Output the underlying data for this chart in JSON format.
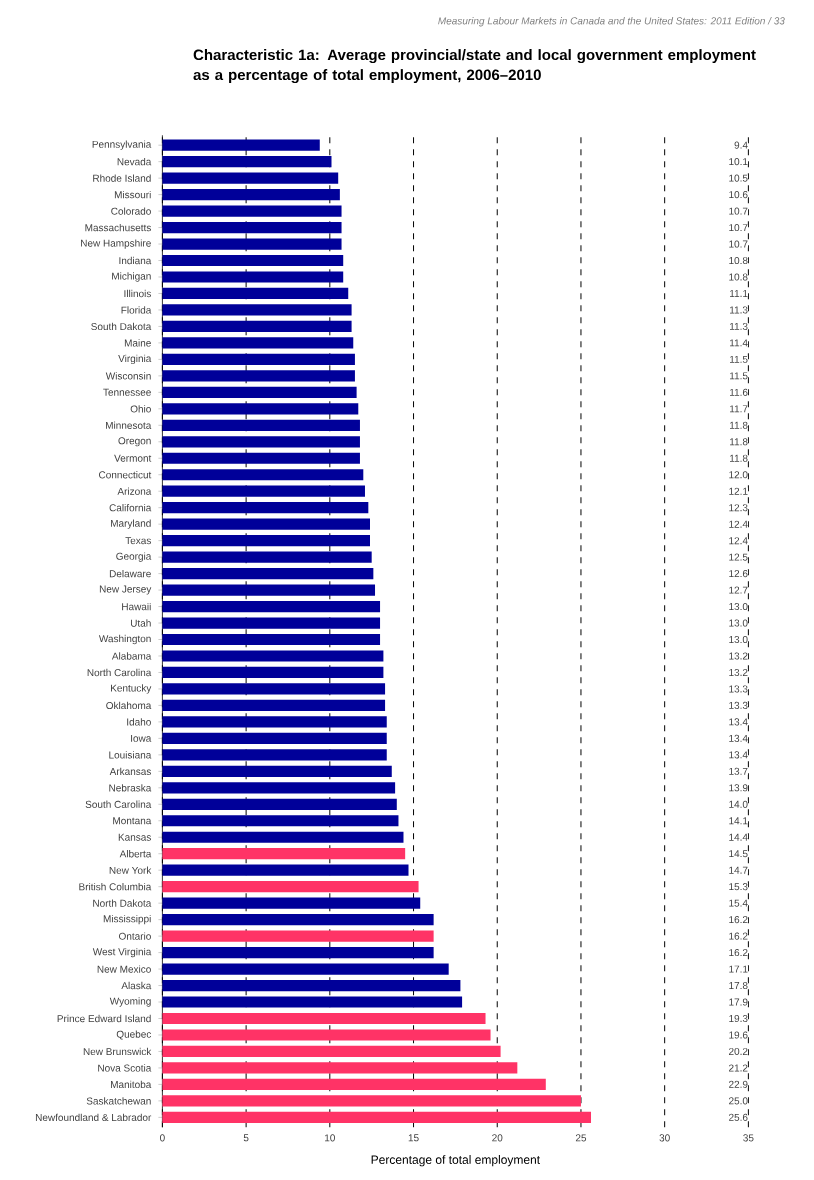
{
  "chart_data": {
    "type": "bar",
    "orientation": "horizontal",
    "title": "Characteristic 1a: Average provincial/state and local government employment as a percentage of total employment, 2006–2010",
    "xlabel": "Percentage of total employment",
    "annotations": [
      "Measuring Labour Markets in Canada and the United States: 2011 Edition  /  33"
    ],
    "categories": [
      "Pennsylvania",
      "Nevada",
      "Rhode Island",
      "Missouri",
      "Colorado",
      "Massachusetts",
      "New Hampshire",
      "Indiana",
      "Michigan",
      "Illinois",
      "Florida",
      "South Dakota",
      "Maine",
      "Virginia",
      "Wisconsin",
      "Tennessee",
      "Ohio",
      "Minnesota",
      "Oregon",
      "Vermont",
      "Connecticut",
      "Arizona",
      "California",
      "Maryland",
      "Texas",
      "Georgia",
      "Delaware",
      "New Jersey",
      "Hawaii",
      "Utah",
      "Washington",
      "Alabama",
      "North Carolina",
      "Kentucky",
      "Oklahoma",
      "Idaho",
      "Iowa",
      "Louisiana",
      "Arkansas",
      "Nebraska",
      "South Carolina",
      "Montana",
      "Kansas",
      "Alberta",
      "New York",
      "British Columbia",
      "North Dakota",
      "Mississippi",
      "Ontario",
      "West Virginia",
      "New Mexico",
      "Alaska",
      "Wyoming",
      "Prince Edward Island",
      "Quebec",
      "New Brunswick",
      "Nova Scotia",
      "Manitoba",
      "Saskatchewan",
      "Newfoundland & Labrador"
    ],
    "values": [
      9.4,
      10.1,
      10.5,
      10.6,
      10.7,
      10.7,
      10.7,
      10.8,
      10.8,
      11.1,
      11.3,
      11.3,
      11.4,
      11.5,
      11.5,
      11.6,
      11.7,
      11.8,
      11.8,
      11.8,
      12.0,
      12.1,
      12.3,
      12.4,
      12.4,
      12.5,
      12.6,
      12.7,
      13.0,
      13.0,
      13.0,
      13.2,
      13.2,
      13.3,
      13.3,
      13.4,
      13.4,
      13.4,
      13.7,
      13.9,
      14.0,
      14.1,
      14.4,
      14.5,
      14.7,
      15.3,
      15.4,
      16.2,
      16.2,
      16.2,
      17.1,
      17.8,
      17.9,
      19.3,
      19.6,
      20.2,
      21.2,
      22.9,
      25.0,
      25.6
    ],
    "value_labels": [
      "9.4",
      "10.1",
      "10.5",
      "10.6",
      "10.7",
      "10.7",
      "10.7",
      "10.8",
      "10.8",
      "11.1",
      "11.3",
      "11.3",
      "11.4",
      "11.5",
      "11.5",
      "11.6",
      "11.7",
      "11.8",
      "11.8",
      "11.8",
      "12.0",
      "12.1",
      "12.3",
      "12.4",
      "12.4",
      "12.5",
      "12.6",
      "12.7",
      "13.0",
      "13.0",
      "13.0",
      "13.2",
      "13.2",
      "13.3",
      "13.3",
      "13.4",
      "13.4",
      "13.4",
      "13.7",
      "13.9",
      "14.0",
      "14.1",
      "14.4",
      "14.5",
      "14.7",
      "15.3",
      "15.4",
      "16.2",
      "16.2",
      "16.2",
      "17.1",
      "17.8",
      "17.9",
      "19.3",
      "19.6",
      "20.2",
      "21.2",
      "22.9",
      "25.0",
      "25.6"
    ],
    "colors": [
      "#000099",
      "#000099",
      "#000099",
      "#000099",
      "#000099",
      "#000099",
      "#000099",
      "#000099",
      "#000099",
      "#000099",
      "#000099",
      "#000099",
      "#000099",
      "#000099",
      "#000099",
      "#000099",
      "#000099",
      "#000099",
      "#000099",
      "#000099",
      "#000099",
      "#000099",
      "#000099",
      "#000099",
      "#000099",
      "#000099",
      "#000099",
      "#000099",
      "#000099",
      "#000099",
      "#000099",
      "#000099",
      "#000099",
      "#000099",
      "#000099",
      "#000099",
      "#000099",
      "#000099",
      "#000099",
      "#000099",
      "#000099",
      "#000099",
      "#000099",
      "#ff3366",
      "#000099",
      "#ff3366",
      "#000099",
      "#000099",
      "#ff3366",
      "#000099",
      "#000099",
      "#000099",
      "#000099",
      "#ff3366",
      "#ff3366",
      "#ff3366",
      "#ff3366",
      "#ff3366",
      "#ff3366",
      "#ff3366"
    ],
    "xlim": [
      0,
      35
    ],
    "xticks": [
      0,
      5,
      10,
      15,
      20,
      25,
      30,
      35
    ],
    "grid": "x"
  }
}
